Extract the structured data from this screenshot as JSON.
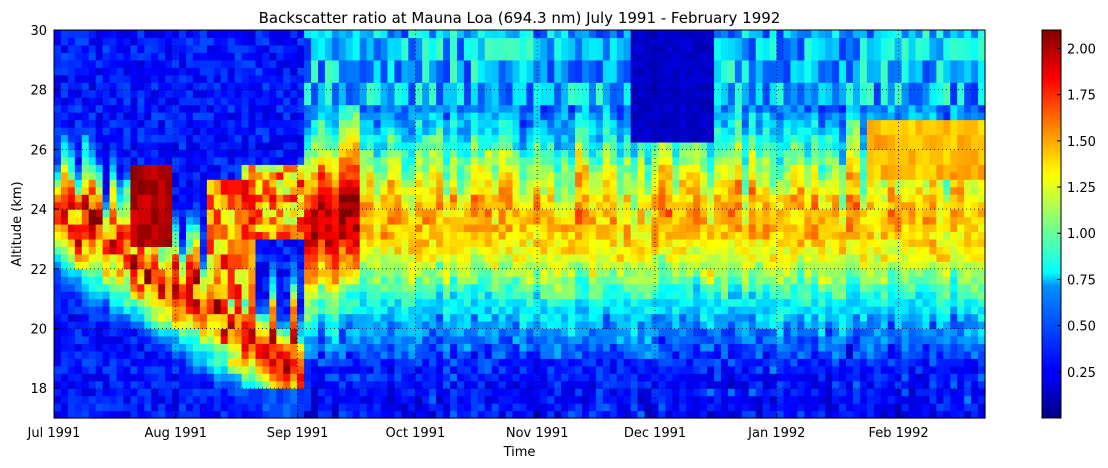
{
  "chart_data": {
    "type": "heatmap",
    "title": "Backscatter ratio at Mauna Loa (694.3 nm) July 1991 - February 1992",
    "xlabel": "Time",
    "ylabel": "Altitude (km)",
    "x_range": [
      "1991-07-01",
      "1992-02-23"
    ],
    "ylim": [
      17,
      30
    ],
    "x_ticks": [
      {
        "label": "Jul 1991",
        "date": "1991-07-01"
      },
      {
        "label": "Aug 1991",
        "date": "1991-08-01"
      },
      {
        "label": "Sep 1991",
        "date": "1991-09-01"
      },
      {
        "label": "Oct 1991",
        "date": "1991-10-01"
      },
      {
        "label": "Nov 1991",
        "date": "1991-11-01"
      },
      {
        "label": "Dec 1991",
        "date": "1991-12-01"
      },
      {
        "label": "Jan 1992",
        "date": "1992-01-01"
      },
      {
        "label": "Feb 1992",
        "date": "1992-02-01"
      }
    ],
    "y_ticks": [
      18,
      20,
      22,
      24,
      26,
      28,
      30
    ],
    "grid": true,
    "colormap": "jet",
    "colorbar": {
      "min": 0.0,
      "max": 2.1,
      "ticks": [
        "0.25",
        "0.50",
        "0.75",
        "1.00",
        "1.25",
        "1.50",
        "1.75",
        "2.00"
      ]
    },
    "layers": [
      {
        "period": "early July 1991",
        "altitude_km": [
          21.5,
          24.5
        ],
        "backscatter_ratio": 1.85
      },
      {
        "period": "late July 1991",
        "altitude_km": [
          23.0,
          25.5
        ],
        "backscatter_ratio": 2.05
      },
      {
        "period": "mid August 1991",
        "altitude_km": [
          23.0,
          25.0
        ],
        "backscatter_ratio": 1.9
      },
      {
        "period": "early September 1991",
        "altitude_km": [
          23.5,
          26.0
        ],
        "backscatter_ratio": 1.95
      },
      {
        "period": "mid September 1991",
        "altitude_km": [
          23.5,
          26.5
        ],
        "backscatter_ratio": 2.05
      },
      {
        "period": "October 1991",
        "altitude_km": [
          22.5,
          25.0
        ],
        "backscatter_ratio": 1.55
      },
      {
        "period": "November 1991",
        "altitude_km": [
          22.0,
          25.0
        ],
        "backscatter_ratio": 1.5
      },
      {
        "period": "December 1991",
        "altitude_km": [
          22.5,
          25.0
        ],
        "backscatter_ratio": 1.55
      },
      {
        "period": "January 1992",
        "altitude_km": [
          22.0,
          25.0
        ],
        "backscatter_ratio": 1.45
      },
      {
        "period": "February 1992",
        "altitude_km": [
          22.5,
          27.0
        ],
        "backscatter_ratio": 1.45
      }
    ]
  }
}
